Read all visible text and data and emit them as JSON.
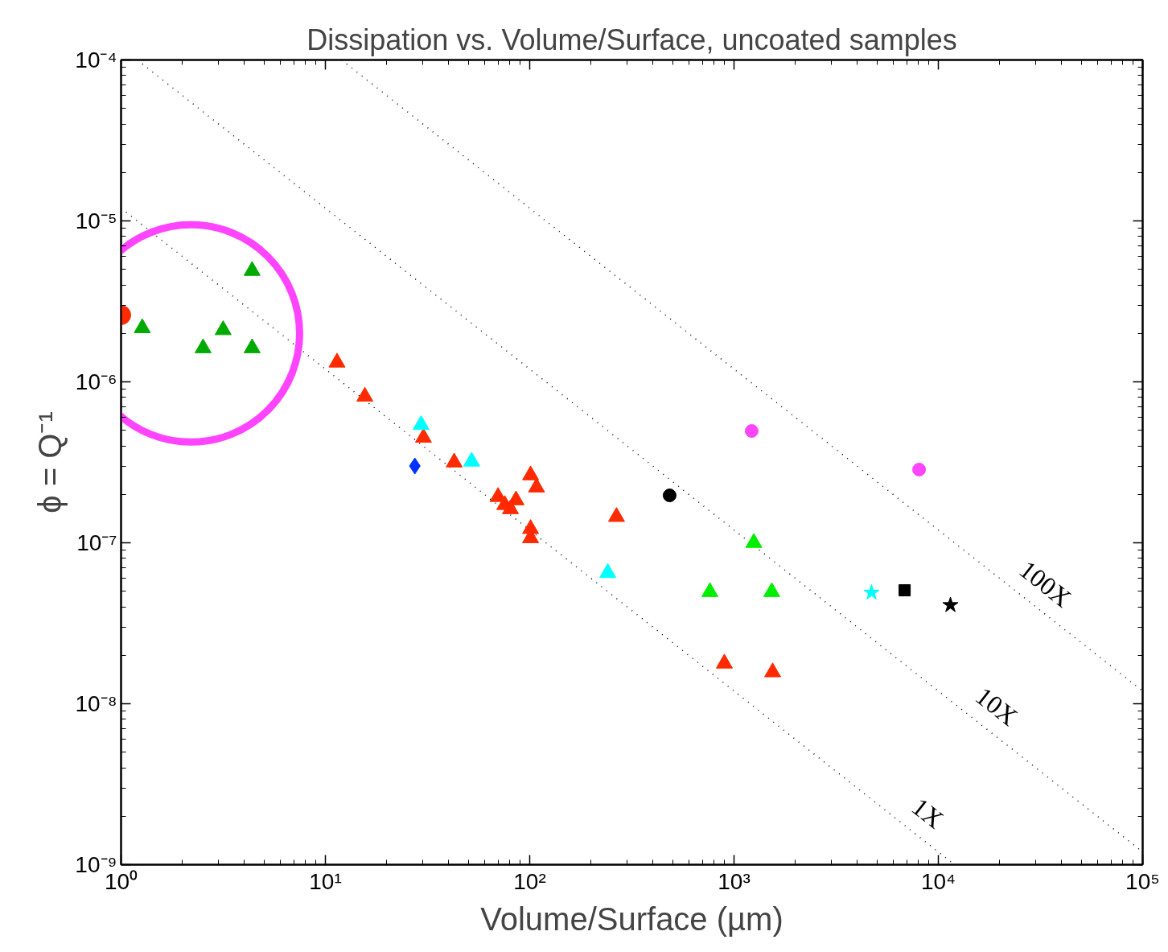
{
  "chart_data": {
    "type": "scatter",
    "title": "Dissipation vs. Volume/Surface, uncoated samples",
    "xlabel": "Volume/Surface (µm)",
    "ylabel": "ϕ = Q⁻¹",
    "log": "xy",
    "grid": false,
    "xlim": [
      1,
      100000
    ],
    "ylim": [
      1e-09,
      0.0001
    ],
    "xticks": [
      {
        "value": 1,
        "label": "10⁰"
      },
      {
        "value": 10,
        "label": "10¹"
      },
      {
        "value": 100,
        "label": "10²"
      },
      {
        "value": 1000,
        "label": "10³"
      },
      {
        "value": 10000,
        "label": "10⁴"
      },
      {
        "value": 100000,
        "label": "10⁵"
      }
    ],
    "yticks": [
      {
        "value": 1e-09,
        "label": "10⁻⁹"
      },
      {
        "value": 1e-08,
        "label": "10⁻⁸"
      },
      {
        "value": 1e-07,
        "label": "10⁻⁷"
      },
      {
        "value": 1e-06,
        "label": "10⁻⁶"
      },
      {
        "value": 1e-05,
        "label": "10⁻⁵"
      },
      {
        "value": 0.0001,
        "label": "10⁻⁴"
      }
    ],
    "series": [
      {
        "type": "line",
        "line_style": "dotted",
        "marker": "none",
        "color": "#000000",
        "x": [
          1,
          12000
        ],
        "values": [
          1.2e-05,
          1e-09
        ]
      },
      {
        "type": "line",
        "line_style": "dotted",
        "marker": "none",
        "color": "#000000",
        "x": [
          1.2,
          100000
        ],
        "values": [
          0.0001,
          1.2e-09
        ]
      },
      {
        "type": "line",
        "line_style": "dotted",
        "marker": "none",
        "color": "#000000",
        "x": [
          12,
          100000
        ],
        "values": [
          0.0001,
          1.2e-08
        ]
      },
      {
        "marker": "circle",
        "color": "#ff2a00",
        "x": [
          1
        ],
        "values": [
          2.6e-06
        ]
      },
      {
        "marker": "triangle",
        "color": "#00aa00",
        "x": [
          1.27,
          2.52,
          3.16,
          4.38,
          4.38
        ],
        "values": [
          2.16e-06,
          1.62e-06,
          2.1e-06,
          1.62e-06,
          4.9e-06
        ]
      },
      {
        "marker": "triangle",
        "color": "#ff2a00",
        "x": [
          11.4,
          15.6,
          30.2,
          42.7,
          101,
          108,
          70,
          75.5,
          85.7,
          80.5,
          101,
          101,
          266,
          897,
          1545
        ],
        "values": [
          1.32e-06,
          8.1e-07,
          4.5e-07,
          3.16e-07,
          2.63e-07,
          2.21e-07,
          1.93e-07,
          1.72e-07,
          1.84e-07,
          1.62e-07,
          1.22e-07,
          1.07e-07,
          1.45e-07,
          1.78e-08,
          1.57e-08
        ]
      },
      {
        "marker": "triangle",
        "color": "#00ffff",
        "x": [
          29.4,
          52,
          241
        ],
        "values": [
          5.4e-07,
          3.2e-07,
          6.5e-08
        ]
      },
      {
        "marker": "diamond",
        "color": "#0033ff",
        "x": [
          27.4
        ],
        "values": [
          3e-07
        ]
      },
      {
        "marker": "circle",
        "color": "#000000",
        "x": [
          484
        ],
        "values": [
          1.97e-07
        ]
      },
      {
        "marker": "circle",
        "color": "#ff44ff",
        "x": [
          1220,
          8050
        ],
        "values": [
          4.95e-07,
          2.85e-07
        ]
      },
      {
        "marker": "triangle",
        "color": "#00ee00",
        "x": [
          1250,
          762,
          1530
        ],
        "values": [
          1e-07,
          4.95e-08,
          4.95e-08
        ]
      },
      {
        "marker": "star",
        "color": "#00ffff",
        "x": [
          4710
        ],
        "values": [
          4.9e-08
        ]
      },
      {
        "marker": "square",
        "color": "#000000",
        "x": [
          6840
        ],
        "values": [
          5.07e-08
        ]
      },
      {
        "marker": "star",
        "color": "#000000",
        "x": [
          11460
        ],
        "values": [
          4.1e-08
        ]
      }
    ],
    "annotations": [
      "1X",
      "10X",
      "100X"
    ]
  }
}
